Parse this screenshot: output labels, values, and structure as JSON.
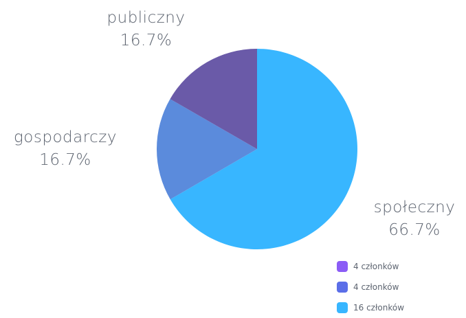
{
  "chart_data": {
    "type": "pie",
    "slices": [
      {
        "label": "społeczny",
        "value": 66.7,
        "value_label": "66.7%",
        "color": "#38b6ff"
      },
      {
        "label": "gospodarczy",
        "value": 16.7,
        "value_label": "16.7%",
        "color": "#5b8bdc"
      },
      {
        "label": "publiczny",
        "value": 16.7,
        "value_label": "16.7%",
        "color": "#6a5aa8"
      }
    ],
    "legend": {
      "placement": "bottom-right",
      "entries": [
        {
          "label": "4 członków",
          "color": "#8b5cf6"
        },
        {
          "label": "4 członków",
          "color": "#5b6ee8"
        },
        {
          "label": "16 członków",
          "color": "#38b6ff"
        }
      ]
    }
  }
}
